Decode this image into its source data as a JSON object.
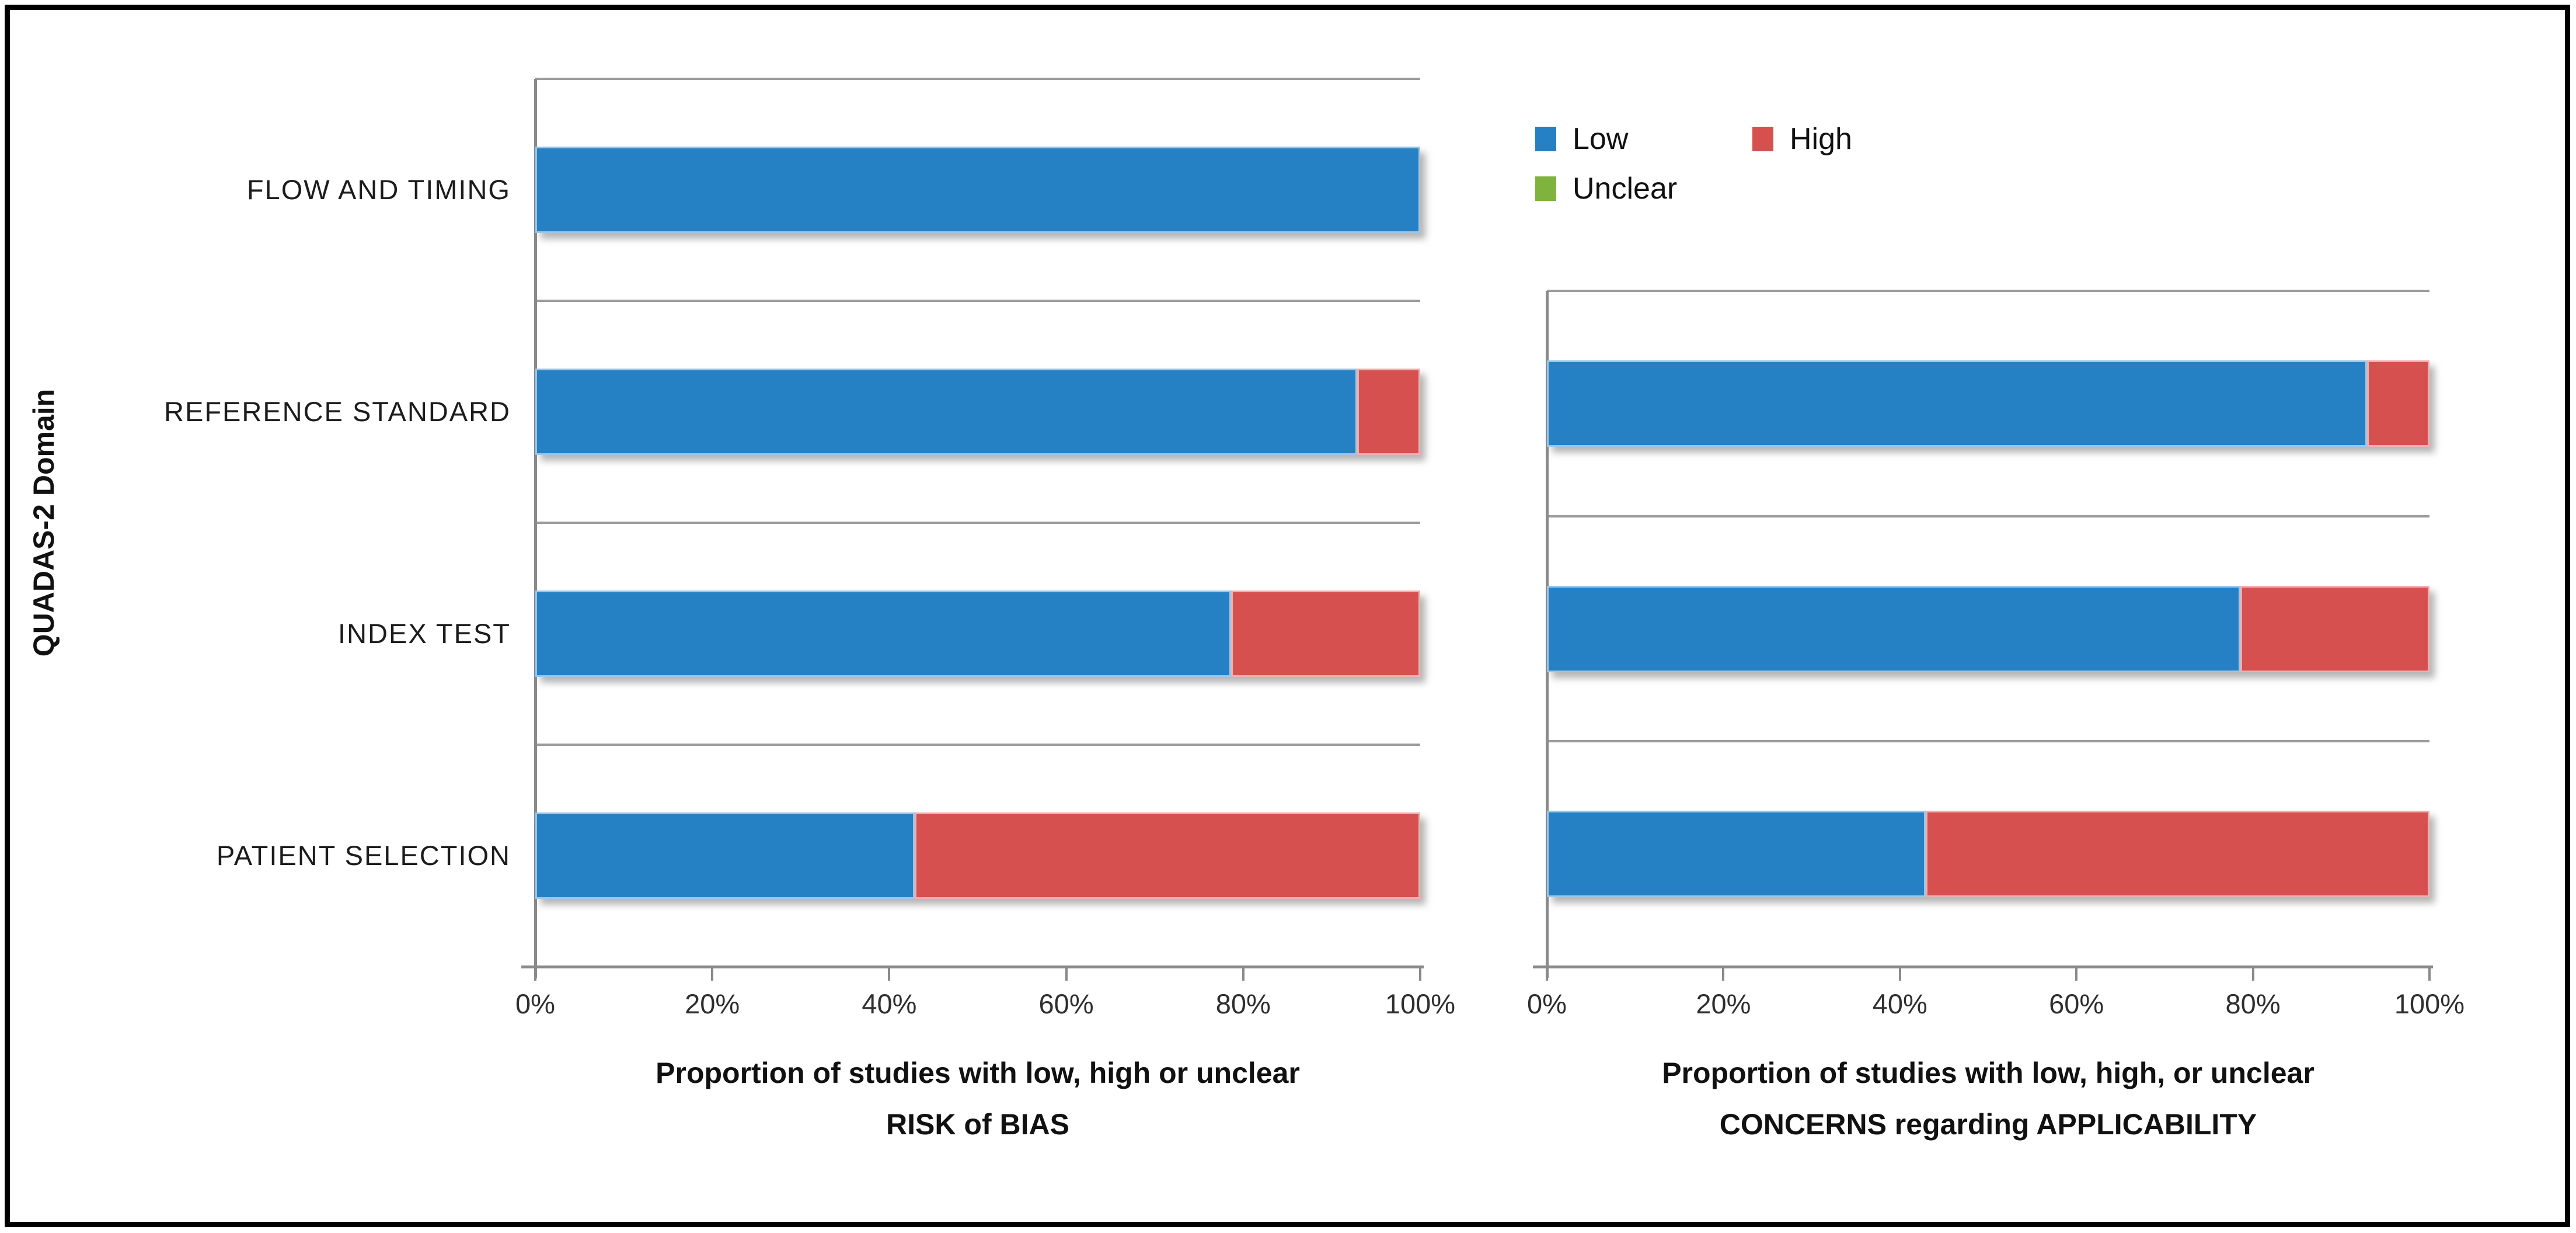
{
  "figure": {
    "y_axis_title": "QUADAS-2 Domain"
  },
  "legend": {
    "items": [
      {
        "label": "Low",
        "color": "#2580c4"
      },
      {
        "label": "High",
        "color": "#d5504e"
      },
      {
        "label": "Unclear",
        "color": "#7fb33d"
      }
    ]
  },
  "colors": {
    "low": "#2580c4",
    "high": "#d5504e",
    "unclear": "#7fb33d",
    "gridline": "#9c9c9c",
    "axis": "#8a8a8a"
  },
  "chart_data": [
    {
      "id": "risk_of_bias",
      "type": "bar",
      "orientation": "horizontal",
      "stacked": true,
      "grid": "category-boundaries",
      "legend_position": "top-right-of-figure",
      "categories": [
        "FLOW AND TIMING",
        "REFERENCE STANDARD",
        "INDEX TEST",
        "PATIENT SELECTION"
      ],
      "series": [
        {
          "name": "Low",
          "values": [
            100,
            92.9,
            78.6,
            42.9
          ]
        },
        {
          "name": "High",
          "values": [
            0,
            7.1,
            21.4,
            57.1
          ]
        },
        {
          "name": "Unclear",
          "values": [
            0,
            0,
            0,
            0
          ]
        }
      ],
      "xlim": [
        0,
        100
      ],
      "x_ticks": [
        "0%",
        "20%",
        "40%",
        "60%",
        "80%",
        "100%"
      ],
      "xlabel_lines": [
        "Proportion of studies with low, high or unclear",
        "RISK of BIAS"
      ],
      "ylabel": "QUADAS-2 Domain",
      "show_category_labels": true
    },
    {
      "id": "applicability_concerns",
      "type": "bar",
      "orientation": "horizontal",
      "stacked": true,
      "grid": "category-boundaries",
      "categories": [
        "REFERENCE STANDARD",
        "INDEX TEST",
        "PATIENT SELECTION"
      ],
      "series": [
        {
          "name": "Low",
          "values": [
            92.9,
            78.6,
            42.9
          ]
        },
        {
          "name": "High",
          "values": [
            7.1,
            21.4,
            57.1
          ]
        },
        {
          "name": "Unclear",
          "values": [
            0,
            0,
            0
          ]
        }
      ],
      "xlim": [
        0,
        100
      ],
      "x_ticks": [
        "0%",
        "20%",
        "40%",
        "60%",
        "80%",
        "100%"
      ],
      "xlabel_lines": [
        "Proportion of studies with low, high, or unclear",
        "CONCERNS regarding APPLICABILITY"
      ],
      "show_category_labels": false
    }
  ]
}
